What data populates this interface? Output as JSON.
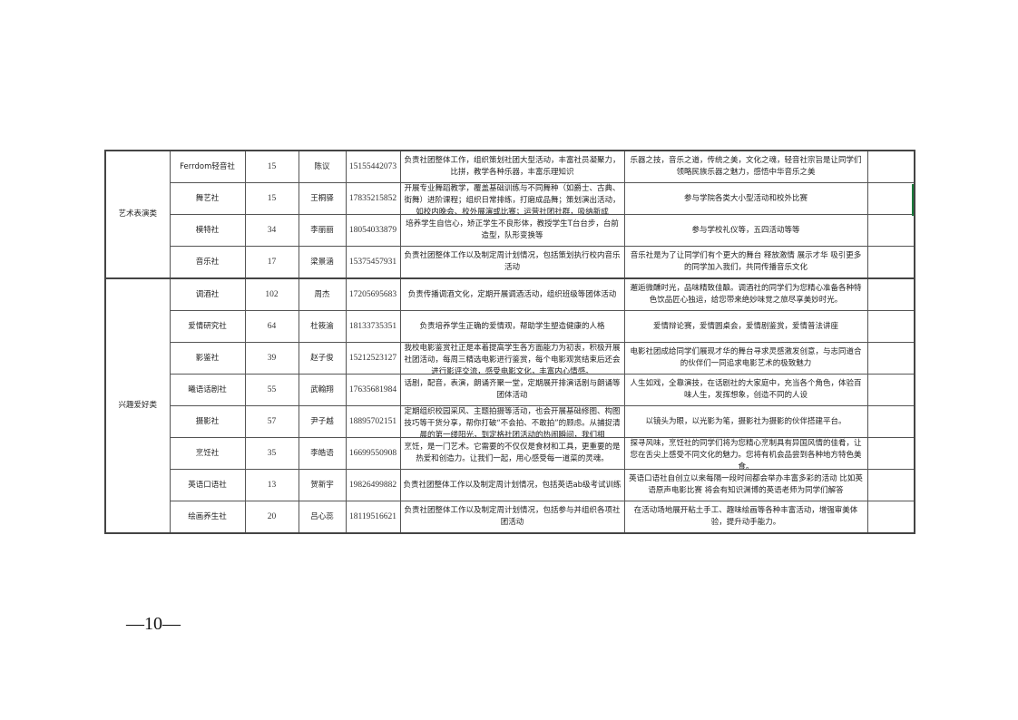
{
  "groups": [
    {
      "category": "艺术表演类",
      "rows": [
        {
          "club": "Ferrdom轻音社",
          "members": "15",
          "leader": "陈议",
          "phone": "15155442073",
          "duty": "负责社团整体工作，组织策划社团大型活动，丰富社员凝聚力，比拼，教学各种乐器，丰富乐理知识",
          "activity": "乐器之技，音乐之道，传统之美，文化之魂，轻音社宗旨是让同学们领略民族乐器之魅力，感悟中华音乐之美",
          "note": ""
        },
        {
          "club": "舞艺社",
          "members": "15",
          "leader": "王桐驿",
          "phone": "17835215852",
          "duty": "开展专业舞蹈教学，覆盖基础训练与不同舞种（如爵士、古典、街舞）进阶课程；组织日常排练，打磨成品舞；策划演出活动，如校内晚会、校外展演或比赛；运营社团社群，吸纳新成",
          "activity": "参与学院各类大小型活动和校外比赛",
          "note": ""
        },
        {
          "club": "模特社",
          "members": "34",
          "leader": "李丽丽",
          "phone": "18054033879",
          "duty": "培养学生自信心，矫正学生不良形体，教授学生T台台步，台前造型，队形变换等",
          "activity": "参与学校礼仪等，五四活动等等",
          "note": ""
        },
        {
          "club": "音乐社",
          "members": "17",
          "leader": "梁景涵",
          "phone": "15375457931",
          "duty": "负责社团整体工作以及制定周计划情况，包括策划执行校内音乐活动",
          "activity": "音乐社是为了让同学们有个更大的舞台 释放激情 展示才华 吸引更多的同学加入我们，共同传播音乐文化",
          "note": ""
        }
      ]
    },
    {
      "category": "兴趣爱好类",
      "rows": [
        {
          "club": "调酒社",
          "members": "102",
          "leader": "周杰",
          "phone": "17205695683",
          "duty": "负责传播调酒文化，定期开展调酒活动，组织班级等团体活动",
          "activity": "邂逅微醺时光，品味精致佳酿。调酒社的同学们为您精心准备各种特色饮品匠心独运，给您带来绝妙味觉之旅尽享美妙时光。",
          "note": ""
        },
        {
          "club": "爱情研究社",
          "members": "64",
          "leader": "杜筱渝",
          "phone": "18133735351",
          "duty": "负责培养学生正确的爱情观，帮助学生塑造健康的人格",
          "activity": "爱情辩论赛，爱情圆桌会，爱情剧鉴赏，爱情普法讲座",
          "note": ""
        },
        {
          "club": "影鉴社",
          "members": "39",
          "leader": "赵子俊",
          "phone": "15212523127",
          "duty": "我校电影鉴赏社正是本着提高学生各方面能力为初衷，积极开展社团活动，每周三精选电影进行鉴赏，每个电影观赏结束后还会进行影评交流，感受电影文化，丰富内心情感。",
          "activity": "电影社团成给同学们展现才华的舞台寻求灵感激发创意，与志同道合的伙伴们一同追求电影艺术的极致魅力",
          "note": ""
        },
        {
          "club": "曦语话剧社",
          "members": "55",
          "leader": "武翰翔",
          "phone": "17635681984",
          "duty": "话剧，配音，表演，朗诵齐聚一堂，定期展开排演话剧与朗诵等团体活动",
          "activity": "人生如戏，全靠演技，在话剧社的大家庭中，充当各个角色，体验百味人生，发挥想象，创造不同的人设",
          "note": ""
        },
        {
          "club": "摄影社",
          "members": "57",
          "leader": "尹子越",
          "phone": "18895702151",
          "duty": "定期组织校园采风、主题拍摄等活动，也会开展基础修图、构图技巧等干货分享，帮你打破“不会拍、不敢拍”的顾虑。从捕捉清晨的第一缕阳光，到定格社团活动的热闹瞬间，我们相",
          "activity": "以镜头为眼，以光影为笔，摄影社为摄影的伙伴搭建平台。",
          "note": ""
        },
        {
          "club": "烹饪社",
          "members": "35",
          "leader": "李皓语",
          "phone": "16699550908",
          "duty": "烹饪，是一门艺术。它需要的不仅仅是食材和工具，更重要的是热爱和创造力。让我们一起，用心感受每一道菜的灵魂。",
          "activity": "探寻风味，烹饪社的同学们将为您精心烹制具有异国风情的佳肴，让您在舌尖上感受不同文化的魅力。您将有机会品尝到各种地方特色美食。",
          "note": ""
        },
        {
          "club": "英语口语社",
          "members": "13",
          "leader": "贺新宇",
          "phone": "19826499882",
          "duty": "负责社团整体工作以及制定周计划情况，包括英语ab级考试训练",
          "activity": "英语口语社自创立以来每隔一段时间都会举办丰富多彩的活动 比如英语原声电影比赛 将会有知识渊博的英语老师为同学们解答",
          "note": ""
        },
        {
          "club": "绘画养生社",
          "members": "20",
          "leader": "吕心蕊",
          "phone": "18119516621",
          "duty": "负责社团整体工作以及制定周计划情况，包括参与并组织各项社团活动",
          "activity": "在活动场地展开粘土手工、趣味绘画等各种丰富活动，增强审美体验，提升动手能力。",
          "note": ""
        }
      ]
    }
  ],
  "footer": {
    "page_number": "—10—"
  }
}
